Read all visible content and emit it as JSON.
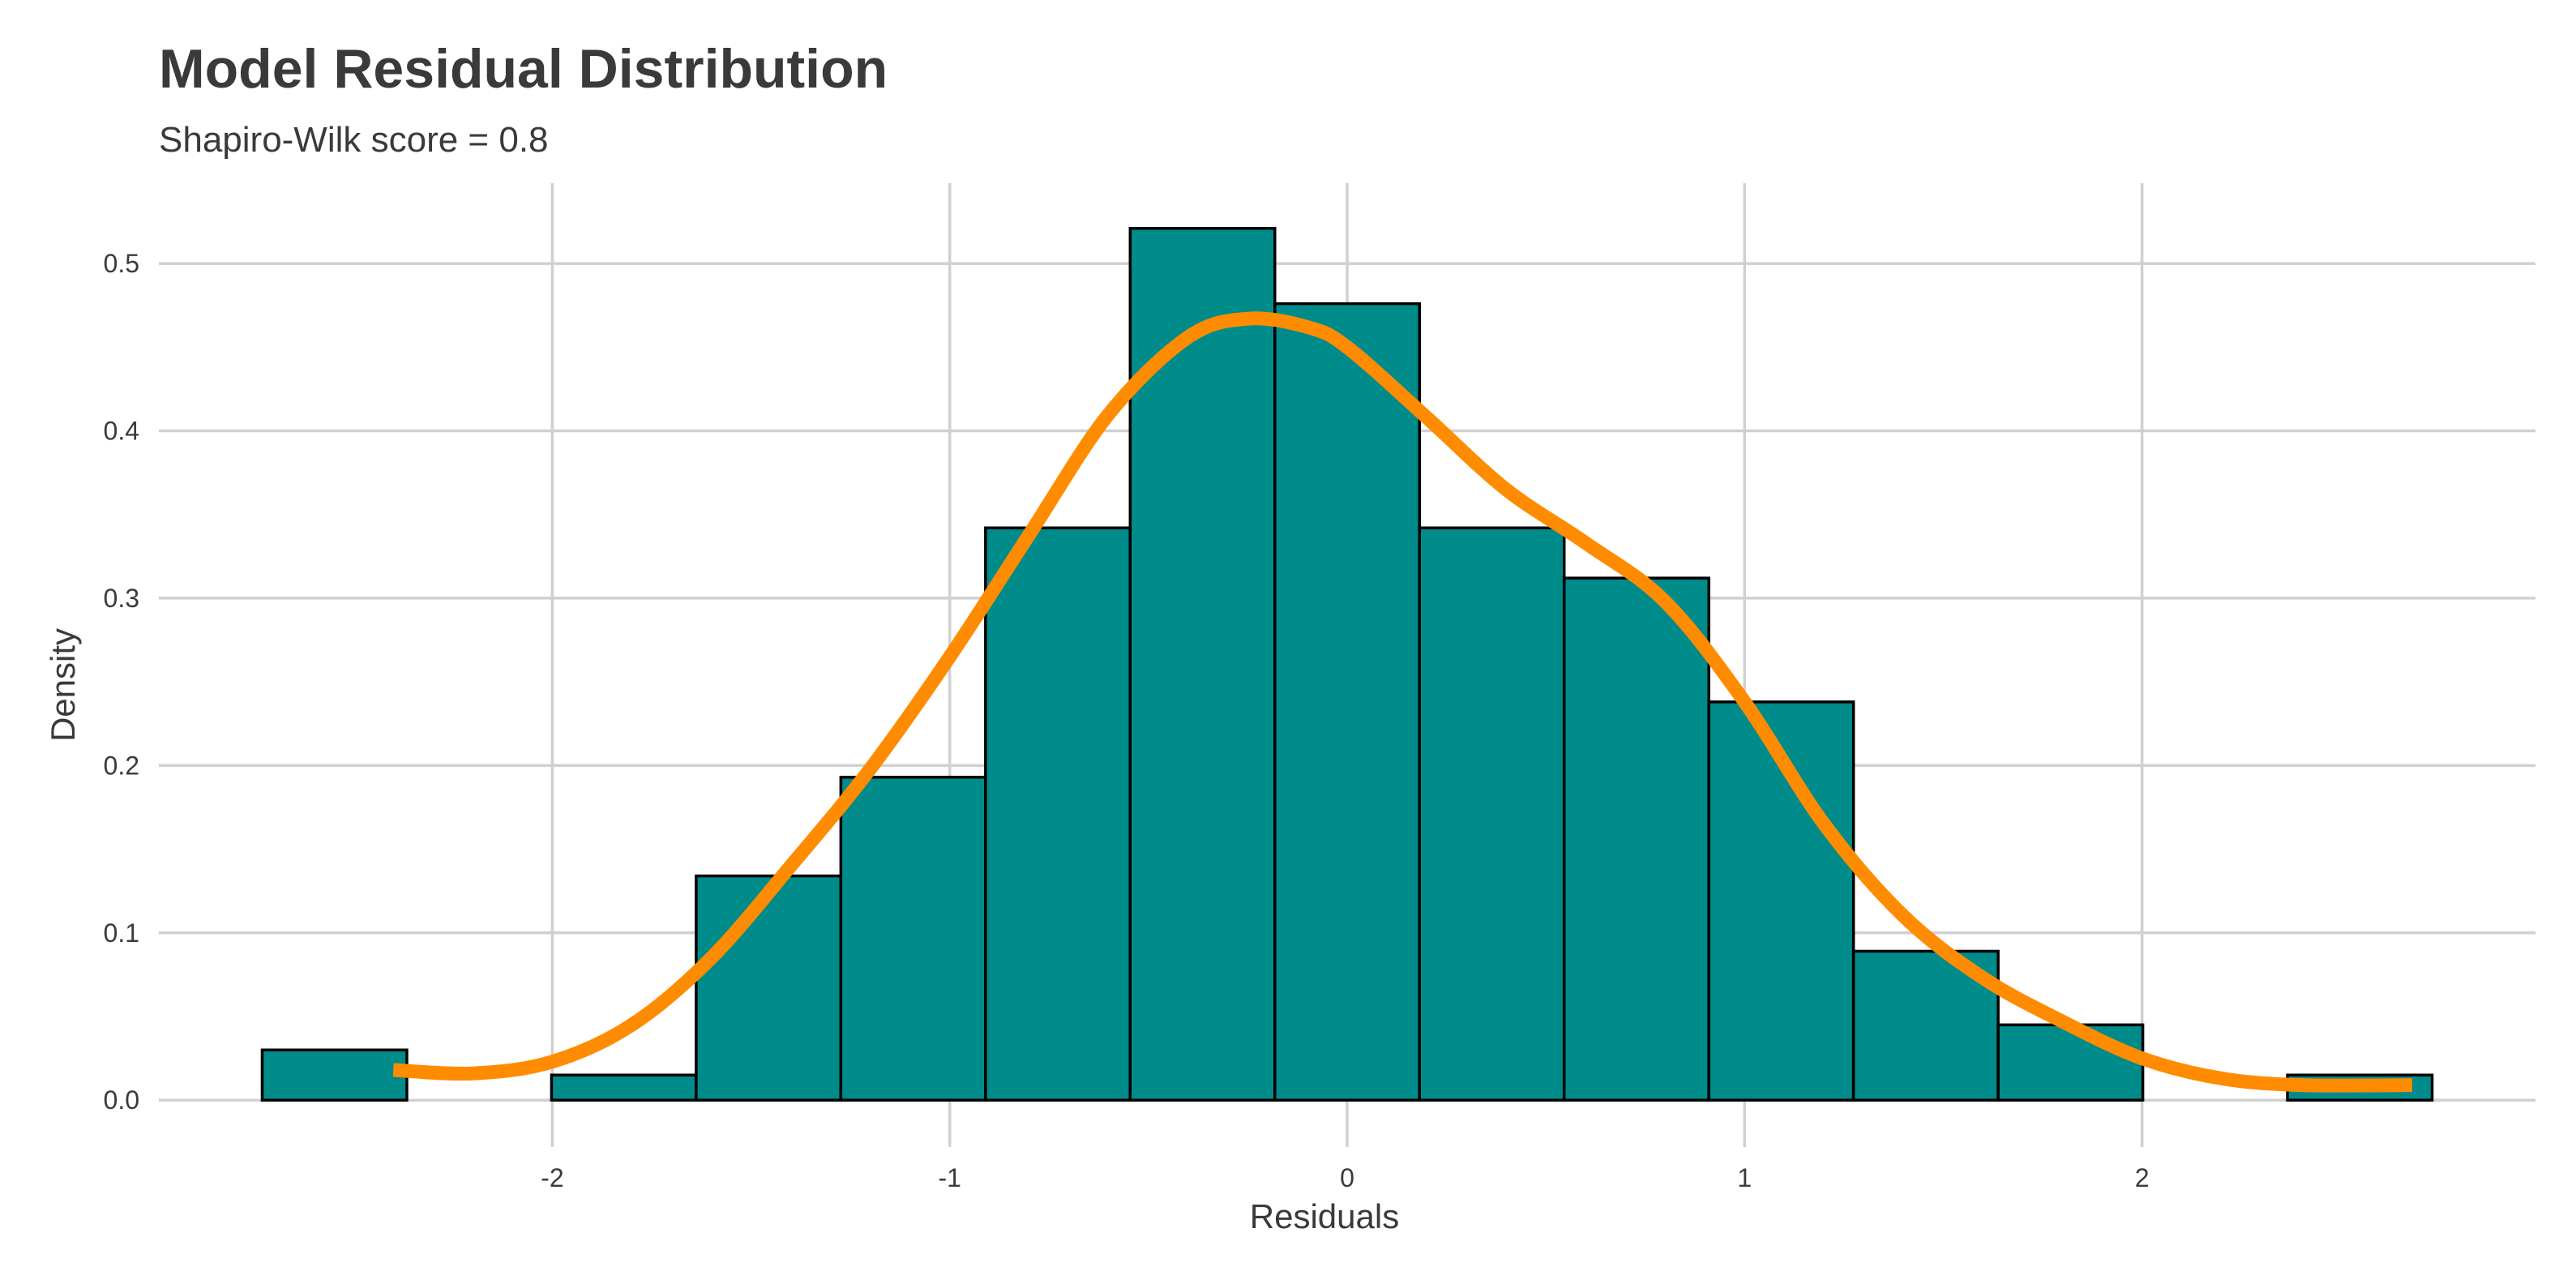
{
  "chart_data": {
    "type": "bar",
    "title": "Model Residual Distribution",
    "subtitle": "Shapiro-Wilk score = 0.8",
    "xlabel": "Residuals",
    "ylabel": "Density",
    "xlim": [
      -2.99,
      2.99
    ],
    "ylim": [
      -0.028,
      0.548
    ],
    "xticks": [
      -2,
      -1,
      0,
      1,
      2
    ],
    "xtick_labels": [
      "-2",
      "-1",
      "0",
      "1",
      "2"
    ],
    "yticks": [
      0.0,
      0.1,
      0.2,
      0.3,
      0.4,
      0.5
    ],
    "ytick_labels": [
      "0.0",
      "0.1",
      "0.2",
      "0.3",
      "0.4",
      "0.5"
    ],
    "grid": true,
    "bars": {
      "bin_edges": [
        -2.73,
        -2.366,
        -2.002,
        -1.638,
        -1.274,
        -0.91,
        -0.546,
        -0.182,
        0.182,
        0.546,
        0.91,
        1.274,
        1.638,
        2.002,
        2.366,
        2.73
      ],
      "values": [
        0.03,
        0.0,
        0.015,
        0.134,
        0.193,
        0.342,
        0.521,
        0.476,
        0.342,
        0.312,
        0.238,
        0.089,
        0.045,
        0.0,
        0.015
      ],
      "fill": "#008b8b",
      "edge": "#000000"
    },
    "density_curve": {
      "color": "#ff8c00",
      "x": [
        -2.4,
        -2.2,
        -2.0,
        -1.8,
        -1.6,
        -1.4,
        -1.2,
        -1.0,
        -0.8,
        -0.6,
        -0.4,
        -0.25,
        -0.1,
        0.0,
        0.2,
        0.4,
        0.6,
        0.8,
        1.0,
        1.2,
        1.4,
        1.6,
        1.8,
        2.0,
        2.2,
        2.4,
        2.68
      ],
      "y": [
        0.018,
        0.016,
        0.023,
        0.045,
        0.085,
        0.14,
        0.198,
        0.265,
        0.338,
        0.41,
        0.456,
        0.467,
        0.462,
        0.45,
        0.408,
        0.365,
        0.333,
        0.298,
        0.238,
        0.165,
        0.11,
        0.073,
        0.047,
        0.025,
        0.013,
        0.009,
        0.009
      ]
    }
  }
}
